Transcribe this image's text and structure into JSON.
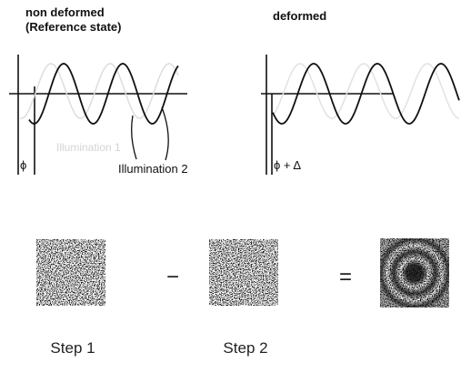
{
  "left_panel": {
    "title_line1": "non deformed",
    "title_line2": "(Reference state)",
    "phase": "ϕ",
    "illumination_1": "Illumination 1",
    "illumination_2": "Illumination 2"
  },
  "right_panel": {
    "title": "deformed",
    "phase": "ϕ + Δ"
  },
  "operators": {
    "minus": "−",
    "equals": "="
  },
  "steps": [
    "Step 1",
    "Step 2"
  ]
}
